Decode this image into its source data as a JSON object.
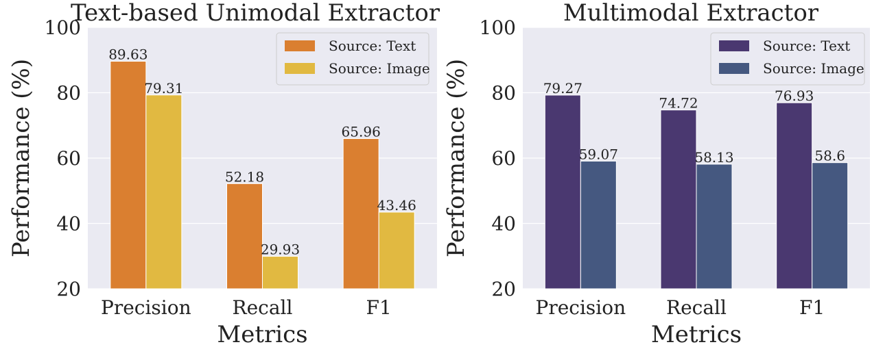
{
  "chart_data": [
    {
      "type": "bar",
      "title": "Text-based Unimodal Extractor",
      "xlabel": "Metrics",
      "ylabel": "Performance (%)",
      "ylim": [
        20,
        100
      ],
      "yticks": [
        20,
        40,
        60,
        80,
        100
      ],
      "categories": [
        "Precision",
        "Recall",
        "F1"
      ],
      "grid": true,
      "legend_position": "top-right",
      "series": [
        {
          "name": "Source: Text",
          "color": "#DA7F30",
          "values": [
            89.63,
            52.18,
            65.96
          ],
          "labels": [
            "89.63",
            "52.18",
            "65.96"
          ]
        },
        {
          "name": "Source: Image",
          "color": "#E1B941",
          "values": [
            79.31,
            29.93,
            43.46
          ],
          "labels": [
            "79.31",
            "29.93",
            "43.46"
          ]
        }
      ]
    },
    {
      "type": "bar",
      "title": "Multimodal Extractor",
      "xlabel": "Metrics",
      "ylabel": "Performance (%)",
      "ylim": [
        20,
        100
      ],
      "yticks": [
        20,
        40,
        60,
        80,
        100
      ],
      "categories": [
        "Precision",
        "Recall",
        "F1"
      ],
      "grid": true,
      "legend_position": "top-right",
      "series": [
        {
          "name": "Source: Text",
          "color": "#4A3870",
          "values": [
            79.27,
            74.72,
            76.93
          ],
          "labels": [
            "79.27",
            "74.72",
            "76.93"
          ]
        },
        {
          "name": "Source: Image",
          "color": "#455880",
          "values": [
            59.07,
            58.13,
            58.6
          ],
          "labels": [
            "59.07",
            "58.13",
            "58.6"
          ]
        }
      ]
    }
  ],
  "style": {
    "plot_background": "#EAEAF2",
    "grid_color": "#FFFFFF"
  }
}
